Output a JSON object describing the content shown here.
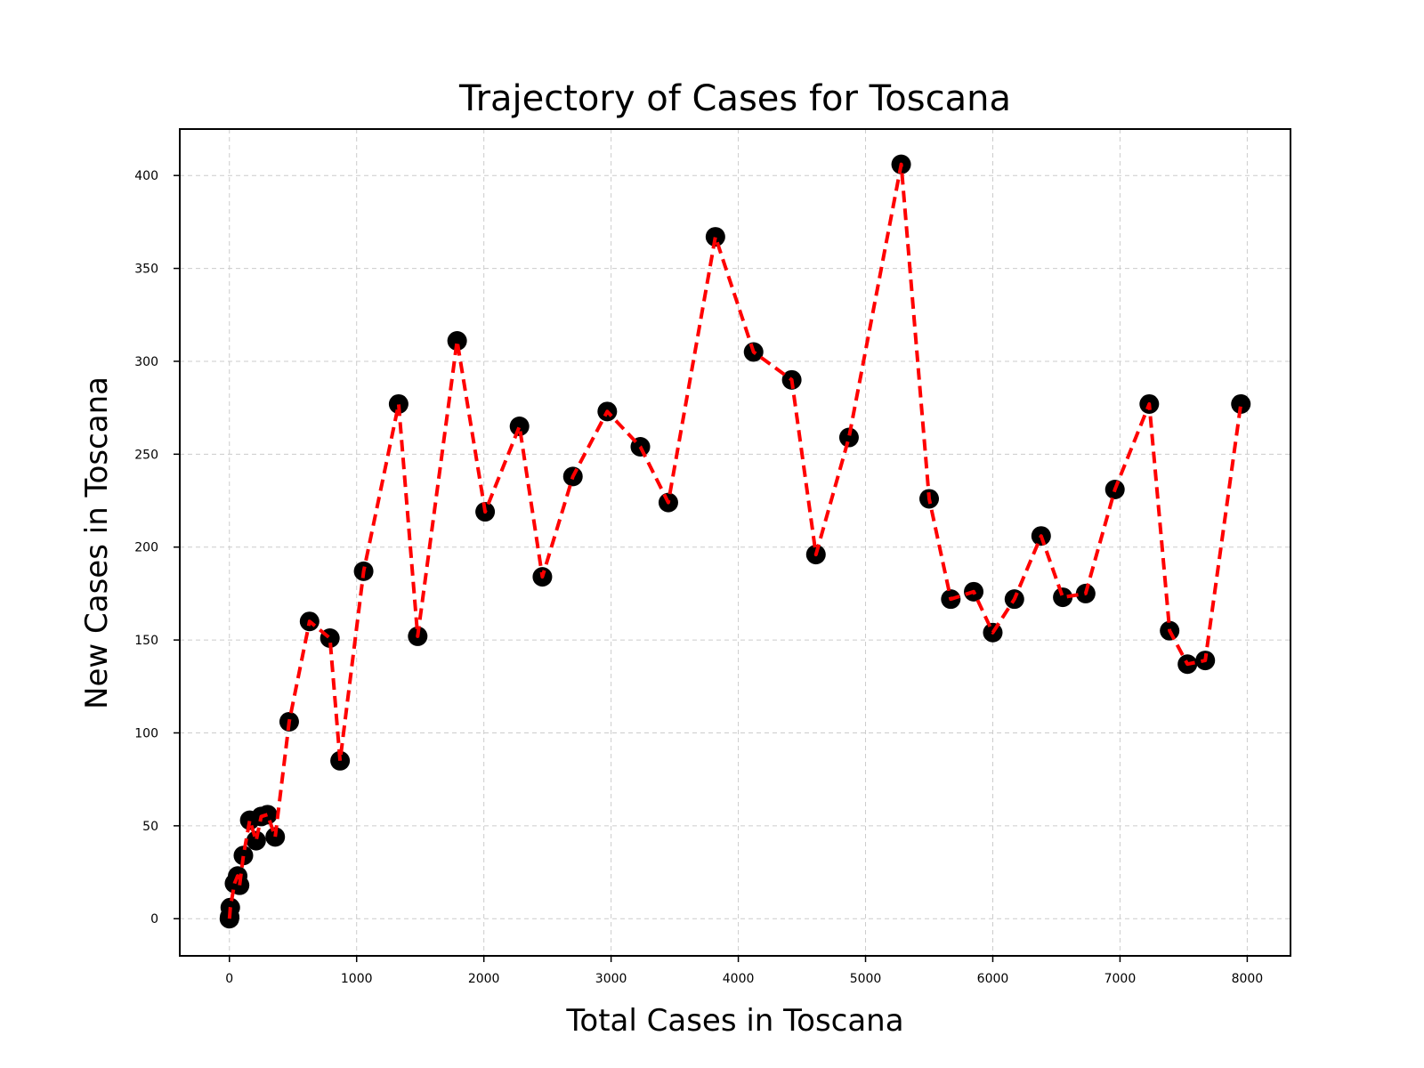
{
  "chart_data": {
    "type": "line",
    "title": "Trajectory of Cases for Toscana",
    "xlabel": "Total Cases in Toscana",
    "ylabel": "New Cases in Toscana",
    "xlim": [
      -390,
      8340
    ],
    "ylim": [
      -20,
      425
    ],
    "xticks": [
      0,
      1000,
      2000,
      3000,
      4000,
      5000,
      6000,
      7000,
      8000
    ],
    "yticks": [
      0,
      50,
      100,
      150,
      200,
      250,
      300,
      350,
      400
    ],
    "grid": true,
    "line_style": "dashed",
    "line_color": "#ff0000",
    "marker_color": "#000000",
    "series": [
      {
        "x": [
          0,
          2,
          7,
          40,
          65,
          80,
          110,
          160,
          210,
          250,
          300,
          360,
          470,
          630,
          790,
          870,
          1055,
          1330,
          1480,
          1790,
          2010,
          2280,
          2460,
          2700,
          2970,
          3230,
          3450,
          3820,
          4120,
          4420,
          4610,
          4870,
          5280,
          5500,
          5670,
          5850,
          6000,
          6170,
          6380,
          6550,
          6730,
          6960,
          7230,
          7390,
          7530,
          7670,
          7950
        ],
        "y": [
          0,
          1,
          6,
          19,
          23,
          18,
          34,
          53,
          42,
          55,
          56,
          44,
          106,
          160,
          151,
          85,
          187,
          277,
          152,
          311,
          219,
          265,
          184,
          238,
          273,
          254,
          224,
          367,
          305,
          290,
          196,
          259,
          406,
          226,
          172,
          176,
          154,
          172,
          206,
          173,
          175,
          231,
          277,
          155,
          137,
          139,
          277
        ]
      }
    ]
  }
}
